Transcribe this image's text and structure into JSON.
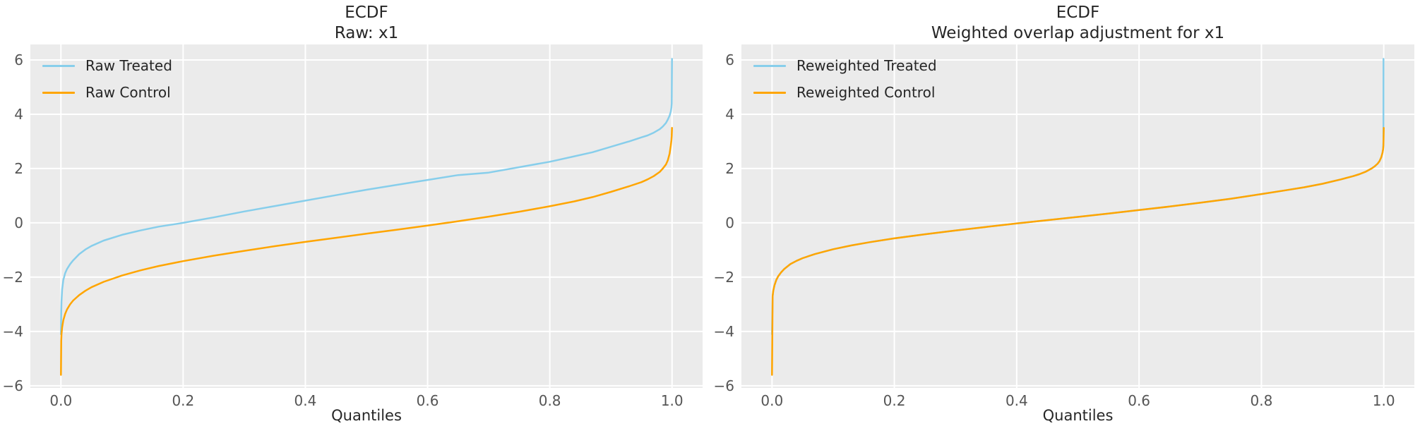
{
  "figure": {
    "background": "#ffffff",
    "plot_background": "#ebebeb",
    "grid_color": "#ffffff",
    "text_color": "#262626",
    "tick_color": "#555555"
  },
  "chart_data": [
    {
      "type": "line",
      "title": "ECDF",
      "subtitle": "Raw: x1",
      "xlabel": "Quantiles",
      "ylabel": "",
      "grid": true,
      "legend_position": "upper left",
      "xlim": [
        -0.05,
        1.05
      ],
      "ylim": [
        -6.08,
        6.57
      ],
      "xticks": {
        "values": [
          0,
          0.2,
          0.4,
          0.6,
          0.8,
          1.0
        ],
        "labels": [
          "0.0",
          "0.2",
          "0.4",
          "0.6",
          "0.8",
          "1.0"
        ]
      },
      "yticks": {
        "values": [
          6,
          4,
          2,
          0,
          -2,
          -4,
          -6
        ],
        "labels": [
          "6",
          "4",
          "2",
          "0",
          "−2",
          "−4",
          "−6"
        ]
      },
      "style": {
        "plot_background": "#ebebeb",
        "grid_color": "#ffffff"
      },
      "series": [
        {
          "name": "Raw Treated",
          "color": "#87CEEB",
          "points": [
            [
              0,
              -4.1
            ],
            [
              0.0005,
              -3.3
            ],
            [
              0.001,
              -2.9
            ],
            [
              0.002,
              -2.45
            ],
            [
              0.004,
              -2.1
            ],
            [
              0.007,
              -1.85
            ],
            [
              0.01,
              -1.7
            ],
            [
              0.015,
              -1.52
            ],
            [
              0.02,
              -1.38
            ],
            [
              0.03,
              -1.15
            ],
            [
              0.04,
              -0.98
            ],
            [
              0.05,
              -0.85
            ],
            [
              0.07,
              -0.65
            ],
            [
              0.1,
              -0.44
            ],
            [
              0.13,
              -0.28
            ],
            [
              0.16,
              -0.14
            ],
            [
              0.2,
              0.0
            ],
            [
              0.25,
              0.2
            ],
            [
              0.3,
              0.42
            ],
            [
              0.35,
              0.62
            ],
            [
              0.4,
              0.82
            ],
            [
              0.45,
              1.02
            ],
            [
              0.5,
              1.22
            ],
            [
              0.55,
              1.4
            ],
            [
              0.6,
              1.58
            ],
            [
              0.65,
              1.76
            ],
            [
              0.7,
              1.85
            ],
            [
              0.75,
              2.05
            ],
            [
              0.8,
              2.25
            ],
            [
              0.84,
              2.45
            ],
            [
              0.87,
              2.6
            ],
            [
              0.9,
              2.8
            ],
            [
              0.93,
              3.0
            ],
            [
              0.95,
              3.15
            ],
            [
              0.96,
              3.22
            ],
            [
              0.97,
              3.32
            ],
            [
              0.98,
              3.45
            ],
            [
              0.985,
              3.55
            ],
            [
              0.99,
              3.68
            ],
            [
              0.993,
              3.8
            ],
            [
              0.996,
              3.95
            ],
            [
              0.998,
              4.1
            ],
            [
              0.999,
              4.25
            ],
            [
              0.9995,
              4.4
            ],
            [
              1,
              6.04
            ]
          ]
        },
        {
          "name": "Raw Control",
          "color": "#FFA500",
          "points": [
            [
              0,
              -5.6
            ],
            [
              0.0005,
              -4.35
            ],
            [
              0.001,
              -4.1
            ],
            [
              0.002,
              -3.85
            ],
            [
              0.004,
              -3.58
            ],
            [
              0.007,
              -3.35
            ],
            [
              0.01,
              -3.19
            ],
            [
              0.015,
              -3.0
            ],
            [
              0.02,
              -2.86
            ],
            [
              0.03,
              -2.66
            ],
            [
              0.04,
              -2.5
            ],
            [
              0.05,
              -2.37
            ],
            [
              0.07,
              -2.17
            ],
            [
              0.1,
              -1.94
            ],
            [
              0.13,
              -1.75
            ],
            [
              0.16,
              -1.59
            ],
            [
              0.2,
              -1.41
            ],
            [
              0.25,
              -1.21
            ],
            [
              0.3,
              -1.03
            ],
            [
              0.35,
              -0.86
            ],
            [
              0.4,
              -0.7
            ],
            [
              0.45,
              -0.55
            ],
            [
              0.5,
              -0.4
            ],
            [
              0.55,
              -0.25
            ],
            [
              0.6,
              -0.1
            ],
            [
              0.65,
              0.06
            ],
            [
              0.7,
              0.23
            ],
            [
              0.75,
              0.41
            ],
            [
              0.8,
              0.61
            ],
            [
              0.84,
              0.79
            ],
            [
              0.87,
              0.95
            ],
            [
              0.9,
              1.14
            ],
            [
              0.93,
              1.35
            ],
            [
              0.95,
              1.5
            ],
            [
              0.96,
              1.6
            ],
            [
              0.97,
              1.72
            ],
            [
              0.98,
              1.88
            ],
            [
              0.985,
              2.0
            ],
            [
              0.99,
              2.15
            ],
            [
              0.993,
              2.3
            ],
            [
              0.996,
              2.55
            ],
            [
              0.998,
              2.85
            ],
            [
              0.999,
              3.05
            ],
            [
              0.9995,
              3.2
            ],
            [
              1,
              3.5
            ]
          ]
        }
      ]
    },
    {
      "type": "line",
      "title": "ECDF",
      "subtitle": "Weighted overlap adjustment for x1",
      "xlabel": "Quantiles",
      "ylabel": "",
      "grid": true,
      "legend_position": "upper left",
      "xlim": [
        -0.05,
        1.05
      ],
      "ylim": [
        -6.08,
        6.57
      ],
      "xticks": {
        "values": [
          0,
          0.2,
          0.4,
          0.6,
          0.8,
          1.0
        ],
        "labels": [
          "0.0",
          "0.2",
          "0.4",
          "0.6",
          "0.8",
          "1.0"
        ]
      },
      "yticks": {
        "values": [
          6,
          4,
          2,
          0,
          -2,
          -4,
          -6
        ],
        "labels": [
          "6",
          "4",
          "2",
          "0",
          "−2",
          "−4",
          "−6"
        ]
      },
      "style": {
        "plot_background": "#ebebeb",
        "grid_color": "#ffffff"
      },
      "series": [
        {
          "name": "Reweighted Treated",
          "color": "#87CEEB",
          "points": [
            [
              0,
              -4.1
            ],
            [
              0.001,
              -2.7
            ],
            [
              0.002,
              -2.5
            ],
            [
              0.004,
              -2.3
            ],
            [
              0.007,
              -2.1
            ],
            [
              0.01,
              -1.97
            ],
            [
              0.015,
              -1.82
            ],
            [
              0.02,
              -1.7
            ],
            [
              0.03,
              -1.52
            ],
            [
              0.04,
              -1.4
            ],
            [
              0.05,
              -1.3
            ],
            [
              0.07,
              -1.15
            ],
            [
              0.1,
              -0.97
            ],
            [
              0.13,
              -0.83
            ],
            [
              0.16,
              -0.71
            ],
            [
              0.2,
              -0.57
            ],
            [
              0.25,
              -0.42
            ],
            [
              0.3,
              -0.28
            ],
            [
              0.35,
              -0.15
            ],
            [
              0.4,
              -0.02
            ],
            [
              0.45,
              0.1
            ],
            [
              0.5,
              0.22
            ],
            [
              0.55,
              0.34
            ],
            [
              0.6,
              0.47
            ],
            [
              0.65,
              0.6
            ],
            [
              0.7,
              0.74
            ],
            [
              0.75,
              0.89
            ],
            [
              0.8,
              1.06
            ],
            [
              0.84,
              1.2
            ],
            [
              0.87,
              1.31
            ],
            [
              0.9,
              1.44
            ],
            [
              0.93,
              1.6
            ],
            [
              0.95,
              1.72
            ],
            [
              0.96,
              1.79
            ],
            [
              0.97,
              1.88
            ],
            [
              0.98,
              2.0
            ],
            [
              0.985,
              2.08
            ],
            [
              0.99,
              2.18
            ],
            [
              0.993,
              2.27
            ],
            [
              0.996,
              2.42
            ],
            [
              0.998,
              2.58
            ],
            [
              0.999,
              2.72
            ],
            [
              0.9995,
              3.0
            ],
            [
              0.9996,
              6.04
            ]
          ]
        },
        {
          "name": "Reweighted Control",
          "color": "#FFA500",
          "points": [
            [
              0,
              -5.6
            ],
            [
              0.001,
              -2.7
            ],
            [
              0.002,
              -2.5
            ],
            [
              0.004,
              -2.3
            ],
            [
              0.007,
              -2.1
            ],
            [
              0.01,
              -1.97
            ],
            [
              0.015,
              -1.82
            ],
            [
              0.02,
              -1.7
            ],
            [
              0.03,
              -1.52
            ],
            [
              0.04,
              -1.4
            ],
            [
              0.05,
              -1.3
            ],
            [
              0.07,
              -1.15
            ],
            [
              0.1,
              -0.97
            ],
            [
              0.13,
              -0.83
            ],
            [
              0.16,
              -0.71
            ],
            [
              0.2,
              -0.57
            ],
            [
              0.25,
              -0.42
            ],
            [
              0.3,
              -0.28
            ],
            [
              0.35,
              -0.15
            ],
            [
              0.4,
              -0.02
            ],
            [
              0.45,
              0.1
            ],
            [
              0.5,
              0.22
            ],
            [
              0.55,
              0.34
            ],
            [
              0.6,
              0.47
            ],
            [
              0.65,
              0.6
            ],
            [
              0.7,
              0.74
            ],
            [
              0.75,
              0.89
            ],
            [
              0.8,
              1.06
            ],
            [
              0.84,
              1.2
            ],
            [
              0.87,
              1.31
            ],
            [
              0.9,
              1.44
            ],
            [
              0.93,
              1.6
            ],
            [
              0.95,
              1.72
            ],
            [
              0.96,
              1.79
            ],
            [
              0.97,
              1.88
            ],
            [
              0.98,
              2.0
            ],
            [
              0.985,
              2.08
            ],
            [
              0.99,
              2.18
            ],
            [
              0.993,
              2.27
            ],
            [
              0.996,
              2.42
            ],
            [
              0.998,
              2.58
            ],
            [
              0.999,
              2.72
            ],
            [
              0.9995,
              2.85
            ],
            [
              1,
              3.5
            ]
          ]
        }
      ]
    }
  ]
}
